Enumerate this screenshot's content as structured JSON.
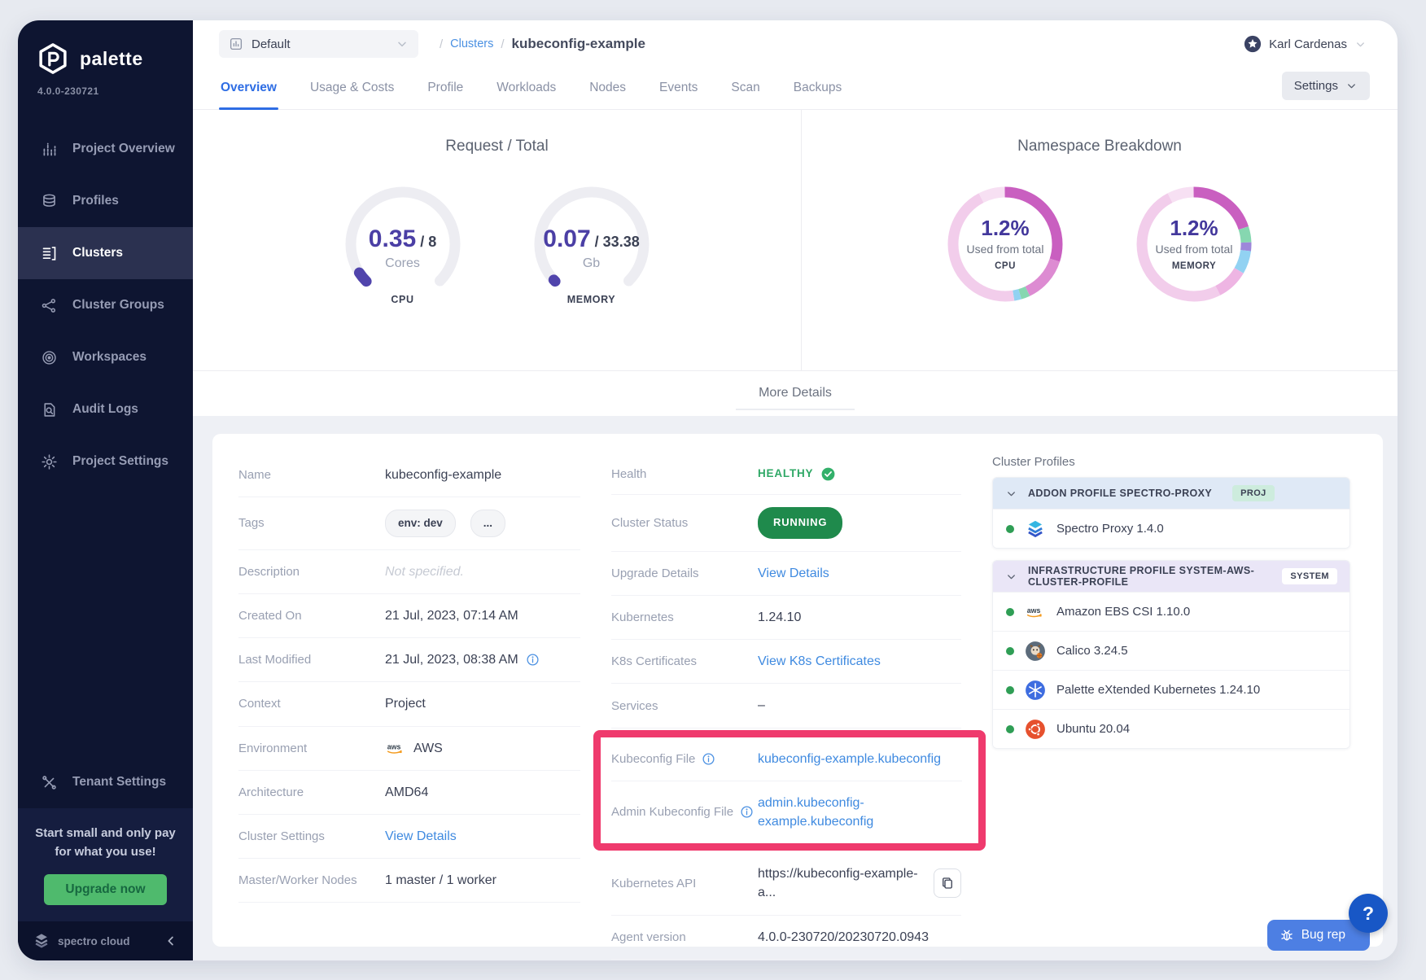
{
  "app": {
    "brand": "palette",
    "version": "4.0.0-230721",
    "footer_brand": "spectro cloud"
  },
  "sidebar": {
    "items": [
      {
        "label": "Project Overview",
        "icon": "bar-chart"
      },
      {
        "label": "Profiles",
        "icon": "layers"
      },
      {
        "label": "Clusters",
        "icon": "list"
      },
      {
        "label": "Cluster Groups",
        "icon": "network"
      },
      {
        "label": "Workspaces",
        "icon": "target"
      },
      {
        "label": "Audit Logs",
        "icon": "doc-search"
      },
      {
        "label": "Project Settings",
        "icon": "gear"
      }
    ],
    "selected": "Clusters",
    "tenant_settings": "Tenant Settings",
    "promo": {
      "text": "Start small and only pay for what you use!",
      "button": "Upgrade now"
    }
  },
  "header": {
    "project_selector": "Default",
    "breadcrumb": {
      "separator": "/",
      "link": "Clusters",
      "current": "kubeconfig-example"
    },
    "user": "Karl Cardenas"
  },
  "tabs": {
    "items": [
      "Overview",
      "Usage & Costs",
      "Profile",
      "Workloads",
      "Nodes",
      "Events",
      "Scan",
      "Backups"
    ],
    "active": "Overview",
    "settings_button": "Settings"
  },
  "overview": {
    "request_total": {
      "title": "Request / Total",
      "gauges": [
        {
          "label": "CPU",
          "value": "0.35",
          "total": "8",
          "unit": "Cores"
        },
        {
          "label": "MEMORY",
          "value": "0.07",
          "total": "33.38",
          "unit": "Gb"
        }
      ]
    },
    "namespace_breakdown": {
      "title": "Namespace Breakdown",
      "donuts": [
        {
          "label": "CPU",
          "percent": "1.2%",
          "caption": "Used from total",
          "segments": [
            {
              "color": "#c95fc0",
              "pct": 30
            },
            {
              "color": "#dd8bd2",
              "pct": 13
            },
            {
              "color": "#86d7b0",
              "pct": 2.5
            },
            {
              "color": "#92d2f2",
              "pct": 2
            },
            {
              "color": "#f2cdeb",
              "pct": 45
            },
            {
              "color": "#f7e0f3",
              "pct": 7.5
            }
          ]
        },
        {
          "label": "MEMORY",
          "percent": "1.2%",
          "caption": "Used from total",
          "segments": [
            {
              "color": "#c95fc0",
              "pct": 20
            },
            {
              "color": "#86d7b0",
              "pct": 4.5
            },
            {
              "color": "#9d87da",
              "pct": 2.5
            },
            {
              "color": "#92d2f2",
              "pct": 6.5
            },
            {
              "color": "#eeb5e3",
              "pct": 9
            },
            {
              "color": "#f2cdeb",
              "pct": 50
            },
            {
              "color": "#f7e0f3",
              "pct": 7.5
            }
          ]
        }
      ]
    },
    "more_details": "More Details"
  },
  "details": {
    "left": [
      {
        "label": "Name",
        "value": "kubeconfig-example",
        "type": "text"
      },
      {
        "label": "Tags",
        "value": [
          "env: dev",
          "..."
        ],
        "type": "tags"
      },
      {
        "label": "Description",
        "value": "Not specified.",
        "type": "muted"
      },
      {
        "label": "Created On",
        "value": "21 Jul, 2023, 07:14 AM",
        "type": "text"
      },
      {
        "label": "Last Modified",
        "value": "21 Jul, 2023, 08:38 AM",
        "type": "text",
        "value_info": true
      },
      {
        "label": "Context",
        "value": "Project",
        "type": "text"
      },
      {
        "label": "Environment",
        "value": "AWS",
        "type": "env"
      },
      {
        "label": "Architecture",
        "value": "AMD64",
        "type": "text"
      },
      {
        "label": "Cluster Settings",
        "value": "View Details",
        "type": "link"
      },
      {
        "label": "Master/Worker Nodes",
        "value": "1 master / 1 worker",
        "type": "text"
      }
    ],
    "middle_top": [
      {
        "label": "Health",
        "value": "HEALTHY",
        "type": "healthy"
      },
      {
        "label": "Cluster Status",
        "value": "RUNNING",
        "type": "pill"
      },
      {
        "label": "Upgrade Details",
        "value": "View Details",
        "type": "link"
      },
      {
        "label": "Kubernetes",
        "value": "1.24.10",
        "type": "text"
      },
      {
        "label": "K8s Certificates",
        "value": "View K8s Certificates",
        "type": "link"
      },
      {
        "label": "Services",
        "value": "–",
        "type": "text"
      }
    ],
    "highlighted": [
      {
        "label": "Kubeconfig File",
        "value": "kubeconfig-example.kubeconfig",
        "type": "link",
        "label_info": true
      },
      {
        "label": "Admin Kubeconfig File",
        "value": "admin.kubeconfig-example.kubeconfig",
        "type": "link-wrap",
        "label_info": true
      }
    ],
    "middle_bottom": [
      {
        "label": "Kubernetes API",
        "value": "https://kubeconfig-example-a...",
        "type": "api"
      },
      {
        "label": "Agent version",
        "value": "4.0.0-230720/20230720.0943",
        "type": "text"
      }
    ]
  },
  "cluster_profiles": {
    "title": "Cluster Profiles",
    "groups": [
      {
        "title": "ADDON PROFILE SPECTRO-PROXY",
        "badge": "PROJ",
        "badge_color": "#cdecdd",
        "header_color": "#dfe9f6",
        "items": [
          {
            "icon": "spectro-proxy",
            "name": "Spectro Proxy 1.4.0"
          }
        ]
      },
      {
        "title": "INFRASTRUCTURE PROFILE SYSTEM-AWS-CLUSTER-PROFILE",
        "badge": "SYSTEM",
        "badge_color": "#ffffff",
        "header_color": "#eae6f7",
        "items": [
          {
            "icon": "aws",
            "name": "Amazon EBS CSI 1.10.0"
          },
          {
            "icon": "calico",
            "name": "Calico 3.24.5"
          },
          {
            "icon": "k8s",
            "name": "Palette eXtended Kubernetes 1.24.10"
          },
          {
            "icon": "ubuntu",
            "name": "Ubuntu 20.04"
          }
        ]
      }
    ]
  },
  "floating": {
    "bug_button": "Bug rep",
    "help_button": "?"
  },
  "chart_data": [
    {
      "type": "gauge",
      "title": "Request / Total",
      "gauges": [
        {
          "label": "CPU",
          "value": 0.35,
          "total": 8,
          "unit": "Cores"
        },
        {
          "label": "MEMORY",
          "value": 0.07,
          "total": 33.38,
          "unit": "Gb"
        }
      ]
    },
    {
      "type": "donut",
      "title": "Namespace Breakdown",
      "donuts": [
        {
          "label": "CPU",
          "used_percent": 1.2,
          "caption": "Used from total"
        },
        {
          "label": "MEMORY",
          "used_percent": 1.2,
          "caption": "Used from total"
        }
      ]
    }
  ]
}
